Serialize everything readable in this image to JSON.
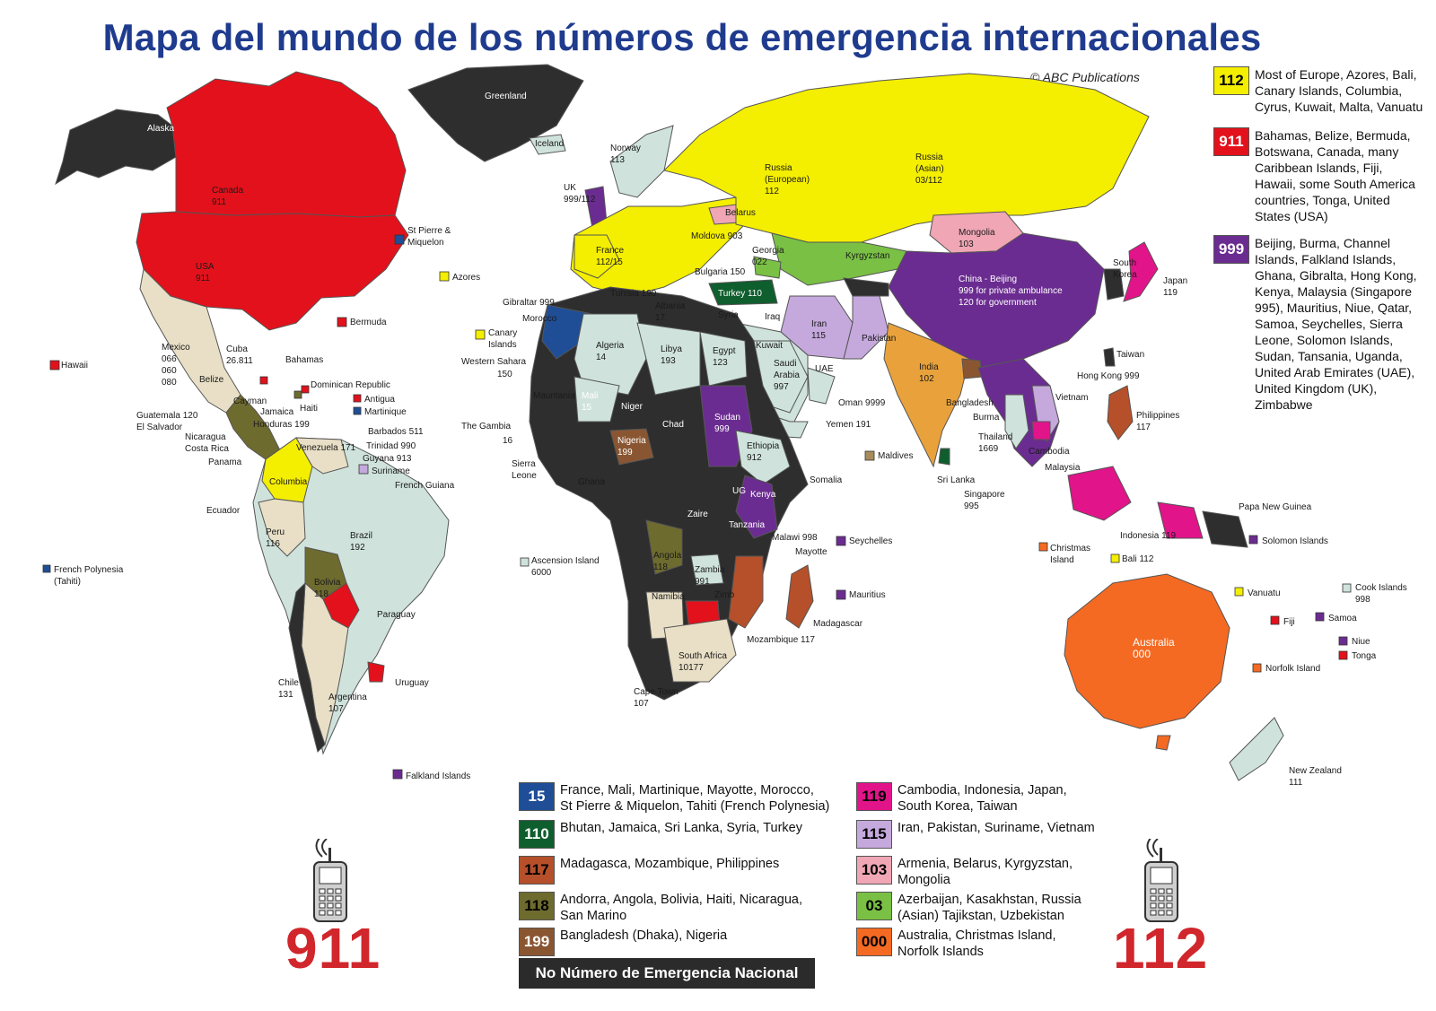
{
  "title": "Mapa del mundo de los números de emergencia internacionales",
  "copyright": "© ABC Publications",
  "colors": {
    "c112": "#f4ee00",
    "c911": "#e3111b",
    "c999": "#6b2c91",
    "c15": "#1f4e96",
    "c110": "#0f5e2e",
    "c117": "#b5502a",
    "c118": "#6e6b2f",
    "c199": "#8a5632",
    "c119": "#e2148a",
    "c115": "#c5a9dd",
    "c103": "#f0a6b4",
    "c03": "#79c044",
    "c000": "#f46a23",
    "none": "#2e2e2e",
    "misc": "#e8dfc6",
    "light": "#cfe3dc"
  },
  "legend_top": [
    {
      "code": "112",
      "color_key": "c112",
      "text_color": "#000000",
      "lines": [
        "Most of Europe, Azores, Bali,",
        "Canary Islands, Columbia,",
        "Cyrus, Kuwait, Malta, Vanuatu"
      ]
    },
    {
      "code": "911",
      "color_key": "c911",
      "text_color": "#ffffff",
      "lines": [
        "Bahamas, Belize, Bermuda,",
        "Botswana, Canada, many",
        "Caribbean Islands, Fiji,",
        "Hawaii, some South America",
        "countries, Tonga, United",
        "States (USA)"
      ]
    },
    {
      "code": "999",
      "color_key": "c999",
      "text_color": "#ffffff",
      "lines": [
        "Beijing, Burma, Channel",
        "Islands, Falkland Islands,",
        "Ghana, Gibralta, Hong Kong,",
        "Kenya, Malaysia (Singapore",
        "995), Mauritius, Niue, Qatar,",
        "Samoa, Seychelles, Sierra",
        "Leone, Solomon Islands,",
        "Sudan, Tansania, Uganda,",
        "United Arab Emirates (UAE),",
        "United Kingdom (UK),",
        "Zimbabwe"
      ]
    }
  ],
  "legend_bottom_left": [
    {
      "code": "15",
      "color_key": "c15",
      "text_color": "#ffffff",
      "lines": [
        "France,  Mali, Martinique, Mayotte, Morocco,",
        "St Pierre & Miquelon, Tahiti (French Polynesia)"
      ]
    },
    {
      "code": "110",
      "color_key": "c110",
      "text_color": "#ffffff",
      "lines": [
        "Bhutan, Jamaica, Sri Lanka, Syria, Turkey"
      ]
    },
    {
      "code": "117",
      "color_key": "c117",
      "text_color": "#000000",
      "lines": [
        "Madagasca, Mozambique, Philippines"
      ]
    },
    {
      "code": "118",
      "color_key": "c118",
      "text_color": "#000000",
      "lines": [
        "Andorra, Angola, Bolivia, Haiti, Nicaragua,",
        "San Marino"
      ]
    },
    {
      "code": "199",
      "color_key": "c199",
      "text_color": "#ffffff",
      "lines": [
        "Bangladesh (Dhaka), Nigeria"
      ]
    }
  ],
  "legend_bottom_right": [
    {
      "code": "119",
      "color_key": "c119",
      "text_color": "#000000",
      "lines": [
        "Cambodia, Indonesia, Japan,",
        "South Korea, Taiwan"
      ]
    },
    {
      "code": "115",
      "color_key": "c115",
      "text_color": "#000000",
      "lines": [
        "Iran, Pakistan, Suriname, Vietnam"
      ]
    },
    {
      "code": "103",
      "color_key": "c103",
      "text_color": "#000000",
      "lines": [
        "Armenia, Belarus, Kyrgyzstan,",
        "Mongolia"
      ]
    },
    {
      "code": "03",
      "color_key": "c03",
      "text_color": "#000000",
      "lines": [
        "Azerbaijan, Kasakhstan, Russia",
        "(Asian) Tajikstan, Uzbekistan"
      ]
    },
    {
      "code": "000",
      "color_key": "c000",
      "text_color": "#000000",
      "lines": [
        "Australia, Christmas Island,",
        "Norfolk Islands"
      ]
    }
  ],
  "no_national": "No Número de Emergencia Nacional",
  "big_left": "911",
  "big_right": "112",
  "map_labels": {
    "alaska": "Alaska",
    "greenland": "Greenland",
    "canada": [
      "Canada",
      "911"
    ],
    "usa": [
      "USA",
      "911"
    ],
    "st_pierre": [
      "St Pierre &",
      "Miquelon"
    ],
    "azores": "Azores",
    "bermuda": "Bermuda",
    "hawaii": "Hawaii",
    "mexico": [
      "Mexico",
      "066",
      "060",
      "080"
    ],
    "cuba": [
      "Cuba",
      "26.811"
    ],
    "bahamas": "Bahamas",
    "dominican": "Dominican Republic",
    "antigua": "Antigua",
    "martinique": "Martinique",
    "belize": "Belize",
    "cayman": "Cayman",
    "jamaica": "Jamaica",
    "haiti": "Haiti",
    "guatemala": [
      "Guatemala 120",
      "El Salvador"
    ],
    "honduras": "Honduras 199",
    "nicaragua": [
      "Nicaragua",
      "Costa Rica"
    ],
    "panama": "Panama",
    "barbados": "Barbados 511",
    "trinidad": "Trinidad 990",
    "guyana": "Guyana 913",
    "suriname": "Suriname",
    "french_guiana": "French Guiana",
    "venezuela": "Venezuela 171",
    "columbia": "Columbia",
    "ecuador": "Ecuador",
    "peru": [
      "Peru",
      "116"
    ],
    "brazil": [
      "Brazil",
      "192"
    ],
    "bolivia": [
      "Bolivia",
      "118"
    ],
    "paraguay": "Paraguay",
    "chile": [
      "Chile",
      "131"
    ],
    "argentina": [
      "Argentina",
      "107"
    ],
    "uruguay": "Uruguay",
    "falkland": "Falkland Islands",
    "french_polynesia": [
      "French Polynesia",
      "(Tahiti)"
    ],
    "iceland": "Iceland",
    "norway": [
      "Norway",
      "113"
    ],
    "uk": [
      "UK",
      "999/112"
    ],
    "france": [
      "France",
      "112/15"
    ],
    "russia_eu": [
      "Russia",
      "(European)",
      "112"
    ],
    "russia_as": [
      "Russia",
      "(Asian)",
      "03/112"
    ],
    "belarus": "Belarus",
    "moldova": "Moldova 903",
    "georgia": [
      "Georgia",
      "022"
    ],
    "bulgaria": "Bulgaria 150",
    "turkey": "Turkey 110",
    "tunisia": "Tunisia 190",
    "albania": [
      "Albania",
      "17"
    ],
    "syria": "Syria",
    "iraq": "Iraq",
    "mongolia": [
      "Mongolia",
      "103"
    ],
    "kyrgyzstan": "Kyrgyzstan",
    "china": [
      "China - Beijing",
      "999 for private ambulance",
      "120 for government"
    ],
    "south_korea": [
      "South",
      "Korea"
    ],
    "japan": [
      "Japan",
      "119"
    ],
    "gibraltar": "Gibraltar 999",
    "morocco": "Morocco",
    "canary": [
      "Canary",
      "Islands"
    ],
    "w_sahara": "Western Sahara",
    "w_sahara_num": "150",
    "algeria": [
      "Algeria",
      "14"
    ],
    "libya": [
      "Libya",
      "193"
    ],
    "egypt": [
      "Egypt",
      "123"
    ],
    "iran": [
      "Iran",
      "115"
    ],
    "pakistan": "Pakistan",
    "kuwait": "Kuwait",
    "saudi": [
      "Saudi",
      "Arabia",
      "997"
    ],
    "uae": "UAE",
    "oman": "Oman 9999",
    "yemen": "Yemen 191",
    "india": [
      "India",
      "102"
    ],
    "bangladesh": "Bangladesh",
    "burma": "Burma",
    "thailand": [
      "Thailand",
      "1669"
    ],
    "taiwan": "Taiwan",
    "hong_kong": "Hong Kong 999",
    "vietnam": "Vietnam",
    "philippines": [
      "Philippines",
      "117"
    ],
    "cambodia": "Cambodia",
    "malaysia": "Malaysia",
    "sri_lanka": "Sri Lanka",
    "maldives": "Maldives",
    "singapore": [
      "Singapore",
      "995"
    ],
    "gambia": "The Gambia",
    "gambia_num": "16",
    "mauritania": "Mauritania",
    "mali": [
      "Mali",
      "15"
    ],
    "niger": "Niger",
    "chad": "Chad",
    "sudan": [
      "Sudan",
      "999"
    ],
    "ethiopia": [
      "Ethiopia",
      "912"
    ],
    "somalia": "Somalia",
    "sierra_leone": [
      "Sierra",
      "Leone"
    ],
    "ghana": "Ghana",
    "nigeria": [
      "Nigeria",
      "199"
    ],
    "uganda": "UG",
    "kenya": "Kenya",
    "zaire": "Zaire",
    "tanzania": "Tanzania",
    "angola": [
      "Angola",
      "118"
    ],
    "zambia": [
      "Zambia",
      "991"
    ],
    "malawi": "Malawi 998",
    "mayotte": "Mayotte",
    "seychelles": "Seychelles",
    "mauritius": "Mauritius",
    "namibia": "Namibia",
    "zimbabwe": "Zimb",
    "madagascar": "Madagascar",
    "mozambique": "Mozambique 117",
    "south_africa": [
      "South Africa",
      "10177"
    ],
    "cape_town": [
      "Cape Town",
      "107"
    ],
    "ascension": [
      "Ascension Island",
      "6000"
    ],
    "christmas": [
      "Christmas",
      "Island"
    ],
    "indonesia": "Indonesia 119",
    "bali": "Bali 112",
    "png": "Papa New Guinea",
    "solomon": "Solomon Islands",
    "australia": [
      "Australia",
      "000"
    ],
    "vanuatu": "Vanuatu",
    "fiji": "Fiji",
    "samoa": "Samoa",
    "cook": [
      "Cook Islands",
      "998"
    ],
    "niue": "Niue",
    "tonga": "Tonga",
    "norfolk": "Norfolk Island",
    "new_zealand": [
      "New Zealand",
      "111"
    ]
  }
}
